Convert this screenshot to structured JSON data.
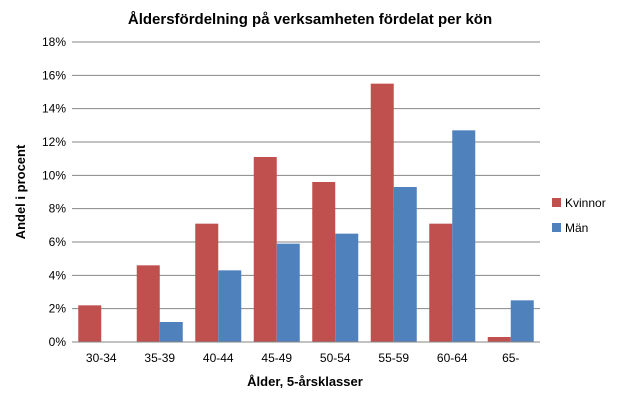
{
  "chart_data": {
    "type": "bar",
    "title": "Åldersfördelning på verksamheten fördelat per kön",
    "xlabel": "Ålder, 5-årsklasser",
    "ylabel": "Andel i procent",
    "categories": [
      "30-34",
      "35-39",
      "40-44",
      "45-49",
      "50-54",
      "55-59",
      "60-64",
      "65-"
    ],
    "series": [
      {
        "name": "Kvinnor",
        "color": "#c0504d",
        "values": [
          2.2,
          4.6,
          7.1,
          11.1,
          9.6,
          15.5,
          7.1,
          0.3
        ]
      },
      {
        "name": "Män",
        "color": "#4f81bd",
        "values": [
          0,
          1.2,
          4.3,
          5.9,
          6.5,
          9.3,
          12.7,
          2.5
        ]
      }
    ],
    "ylim": [
      0,
      18
    ],
    "yticks": [
      0,
      2,
      4,
      6,
      8,
      10,
      12,
      14,
      16,
      18
    ],
    "ytick_labels": [
      "0%",
      "2%",
      "4%",
      "6%",
      "8%",
      "10%",
      "12%",
      "14%",
      "16%",
      "18%"
    ],
    "grid": true,
    "legend_position": "right"
  }
}
